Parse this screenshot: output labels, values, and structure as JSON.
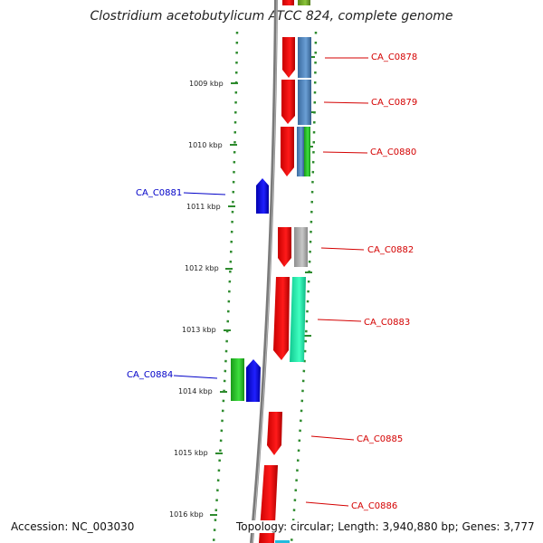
{
  "title": "Clostridium acetobutylicum ATCC 824, complete genome",
  "accession": "Accession: NC_003030",
  "topology": "Topology: circular; Length: 3,940,880 bp; Genes: 3,777",
  "colors": {
    "backbone": "#7f7f7f",
    "tick_dots": "#2e8b2e",
    "forward_label": "#d40000",
    "reverse_label": "#0000c8",
    "gene_red": "#e80000",
    "gene_blue": "#0a0aee",
    "gene_green": "#2ec42e",
    "gene_steelblue": "#4a7fb5",
    "gene_gray": "#a8a8a8",
    "gene_aqua": "#1de8a8"
  },
  "kbp_ticks": [
    "1009 kbp",
    "1010 kbp",
    "1011 kbp",
    "1012 kbp",
    "1013 kbp",
    "1014 kbp",
    "1015 kbp",
    "1016 kbp"
  ],
  "genes": [
    {
      "label": "CA_C0878",
      "strand": "forward"
    },
    {
      "label": "CA_C0879",
      "strand": "forward"
    },
    {
      "label": "CA_C0880",
      "strand": "forward"
    },
    {
      "label": "CA_C0881",
      "strand": "reverse"
    },
    {
      "label": "CA_C0882",
      "strand": "forward"
    },
    {
      "label": "CA_C0883",
      "strand": "forward"
    },
    {
      "label": "CA_C0884",
      "strand": "reverse"
    },
    {
      "label": "CA_C0885",
      "strand": "forward"
    },
    {
      "label": "CA_C0886",
      "strand": "forward"
    }
  ]
}
